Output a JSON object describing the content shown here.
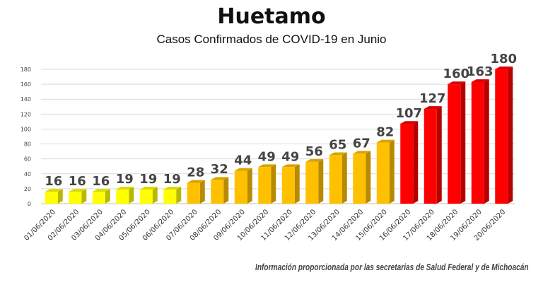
{
  "chart_data": {
    "type": "bar",
    "title": "Huetamo",
    "subtitle": "Casos Confirmados de COVID-19 en Junio",
    "xlabel": "",
    "ylabel": "",
    "ylim": [
      0,
      180
    ],
    "yticks": [
      "0",
      "20",
      "40",
      "60",
      "80",
      "100",
      "120",
      "140",
      "160",
      "180"
    ],
    "grid": true,
    "categories": [
      "01/06/2020",
      "02/06/2020",
      "03/06/2020",
      "04/06/2020",
      "05/06/2020",
      "06/06/2020",
      "07/06/2020",
      "08/06/2020",
      "09/06/2020",
      "10/06/2020",
      "11/06/2020",
      "12/06/2020",
      "13/06/2020",
      "14/06/2020",
      "15/06/2020",
      "16/06/2020",
      "17/06/2020",
      "18/06/2020",
      "19/06/2020",
      "20/06/2020"
    ],
    "values": [
      16,
      16,
      16,
      19,
      19,
      19,
      28,
      32,
      44,
      49,
      49,
      56,
      65,
      67,
      82,
      107,
      127,
      160,
      163,
      180
    ],
    "colors": [
      "#ffff00",
      "#ffff00",
      "#ffff00",
      "#ffff00",
      "#ffff00",
      "#ffff00",
      "#ffc000",
      "#ffc000",
      "#ffc000",
      "#ffc000",
      "#ffc000",
      "#ffc000",
      "#ffc000",
      "#ffc000",
      "#ffc000",
      "#ff0000",
      "#ff0000",
      "#ff0000",
      "#ff0000",
      "#ff0000"
    ]
  },
  "source_note": "Información proporcionada por las secretarias de Salud Federal y de Michoacán"
}
